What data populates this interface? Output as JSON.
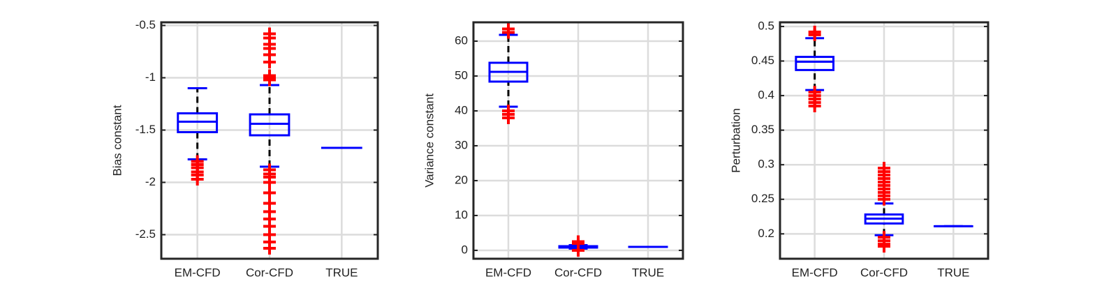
{
  "chart_data": [
    {
      "type": "box",
      "ylabel": "Bias constant",
      "categories": [
        "EM-CFD",
        "Cor-CFD",
        "TRUE"
      ],
      "box_color": "#0000ff",
      "whisker_color": "#000000",
      "outlier_color": "#ff0000",
      "grid": true,
      "ylim": [
        -2.73,
        -0.47
      ],
      "yticks": [
        -2.5,
        -2,
        -1.5,
        -1,
        -0.5
      ],
      "boxes": [
        {
          "whislo": -1.78,
          "q1": -1.52,
          "median": -1.42,
          "q3": -1.34,
          "whishi": -1.1,
          "outliers": [
            -1.8,
            -1.83,
            -1.86,
            -1.9,
            -1.93,
            -1.97
          ]
        },
        {
          "whislo": -1.85,
          "q1": -1.55,
          "median": -1.44,
          "q3": -1.35,
          "whishi": -1.07,
          "outliers": [
            -0.58,
            -0.62,
            -0.68,
            -0.72,
            -0.78,
            -0.85,
            -0.98,
            -1.0,
            -1.02,
            -1.88,
            -1.92,
            -1.95,
            -2.0,
            -2.1,
            -2.2,
            -2.28,
            -2.35,
            -2.42,
            -2.5,
            -2.57,
            -2.63
          ]
        },
        {
          "whislo": -1.67,
          "q1": -1.67,
          "median": -1.67,
          "q3": -1.67,
          "whishi": -1.67,
          "outliers": []
        }
      ]
    },
    {
      "type": "box",
      "ylabel": "Variance constant",
      "categories": [
        "EM-CFD",
        "Cor-CFD",
        "TRUE"
      ],
      "box_color": "#0000ff",
      "whisker_color": "#000000",
      "outlier_color": "#ff0000",
      "grid": true,
      "ylim": [
        -2.4,
        65.4
      ],
      "yticks": [
        0,
        10,
        20,
        30,
        40,
        50,
        60
      ],
      "boxes": [
        {
          "whislo": 41.2,
          "q1": 48.4,
          "median": 51.2,
          "q3": 53.8,
          "whishi": 61.8,
          "outliers": [
            62.5,
            63.5,
            40,
            39,
            38
          ]
        },
        {
          "whislo": 0.5,
          "q1": 0.8,
          "median": 1,
          "q3": 1.2,
          "whishi": 1.5,
          "outliers": [
            0,
            2,
            2.5
          ]
        },
        {
          "whislo": 1,
          "q1": 1,
          "median": 1,
          "q3": 1,
          "whishi": 1,
          "outliers": []
        }
      ]
    },
    {
      "type": "box",
      "ylabel": "Perturbation",
      "categories": [
        "EM-CFD",
        "Cor-CFD",
        "TRUE"
      ],
      "box_color": "#0000ff",
      "whisker_color": "#000000",
      "outlier_color": "#ff0000",
      "grid": true,
      "ylim": [
        0.164,
        0.506
      ],
      "yticks": [
        0.2,
        0.25,
        0.3,
        0.35,
        0.4,
        0.45,
        0.5
      ],
      "boxes": [
        {
          "whislo": 0.408,
          "q1": 0.437,
          "median": 0.449,
          "q3": 0.456,
          "whishi": 0.483,
          "outliers": [
            0.488,
            0.492,
            0.405,
            0.4,
            0.395,
            0.39,
            0.385
          ]
        },
        {
          "whislo": 0.198,
          "q1": 0.215,
          "median": 0.222,
          "q3": 0.228,
          "whishi": 0.244,
          "outliers": [
            0.25,
            0.255,
            0.26,
            0.265,
            0.27,
            0.275,
            0.28,
            0.285,
            0.29,
            0.295,
            0.195,
            0.19,
            0.185,
            0.182
          ]
        },
        {
          "whislo": 0.211,
          "q1": 0.211,
          "median": 0.211,
          "q3": 0.211,
          "whishi": 0.211,
          "outliers": []
        }
      ]
    }
  ]
}
